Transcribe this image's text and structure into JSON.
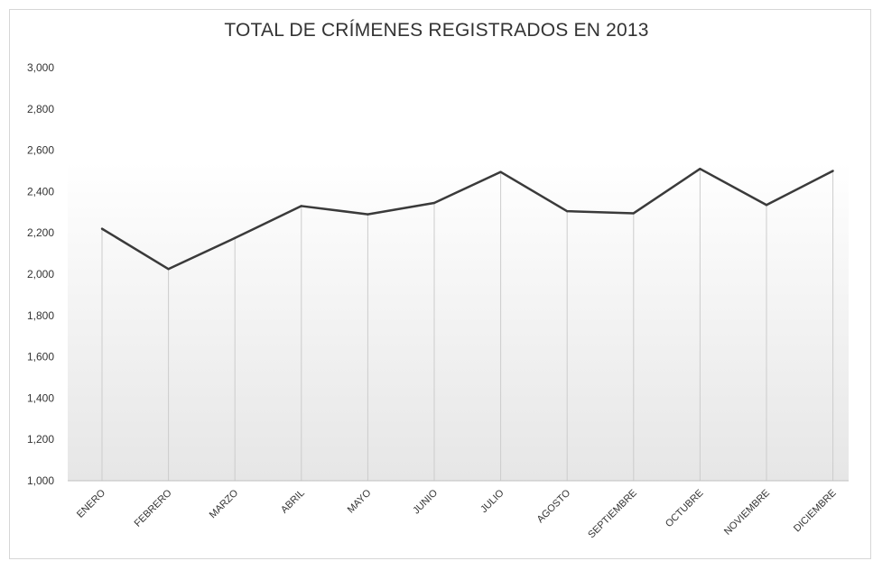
{
  "chart_data": {
    "type": "line",
    "title": "TOTAL DE CRÍMENES REGISTRADOS EN 2013",
    "categories": [
      "ENERO",
      "FEBRERO",
      "MARZO",
      "ABRIL",
      "MAYO",
      "JUNIO",
      "JULIO",
      "AGOSTO",
      "SEPTIEMBRE",
      "OCTUBRE",
      "NOVIEMBRE",
      "DICIEMBRE"
    ],
    "series": [
      {
        "values": [
          2220,
          2025,
          2175,
          2330,
          2290,
          2345,
          2495,
          2305,
          2295,
          2510,
          2335,
          2500
        ]
      }
    ],
    "ylim": [
      1000,
      3000
    ],
    "yticks": [
      1000,
      1200,
      1400,
      1600,
      1800,
      2000,
      2200,
      2400,
      2600,
      2800,
      3000
    ],
    "ytick_labels": [
      "1,000",
      "1,200",
      "1,400",
      "1,600",
      "1,800",
      "2,000",
      "2,200",
      "2,400",
      "2,600",
      "2,800",
      "3,000"
    ],
    "line_color": "#3a3a3a",
    "drop_line_color": "#cccccc",
    "fill_color_top": "#ffffff",
    "fill_color_bottom": "#e6e6e6",
    "grid": false,
    "legend": "none"
  }
}
